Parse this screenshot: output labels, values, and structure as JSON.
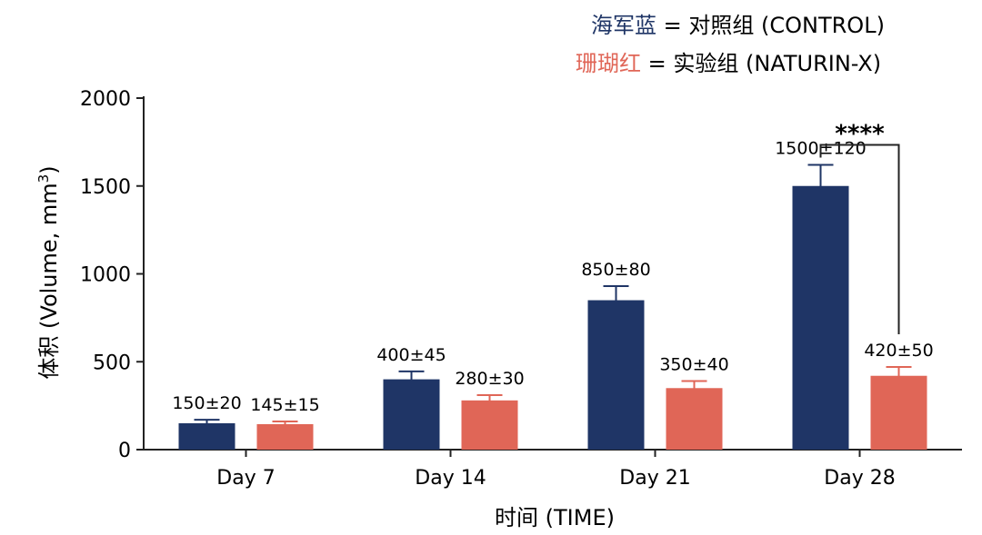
{
  "chart_data": {
    "type": "bar",
    "xlabel": "时间 (TIME)",
    "ylabel": "体积 (Volume, mm³)",
    "ylabel_main": "体积 (Volume, mm",
    "ylabel_sup": "3",
    "ylabel_close": ")",
    "ylim": [
      0,
      2000
    ],
    "yticks": [
      0,
      500,
      1000,
      1500,
      2000
    ],
    "categories": [
      "Day 7",
      "Day 14",
      "Day 21",
      "Day 28"
    ],
    "series": [
      {
        "name": "对照组 (CONTROL)",
        "legend_color_word": "海军蓝",
        "color": "#1f3566",
        "values": [
          150,
          400,
          850,
          1500
        ],
        "errors": [
          20,
          45,
          80,
          120
        ],
        "labels": [
          "150±20",
          "400±45",
          "850±80",
          "1500±120"
        ]
      },
      {
        "name": "实验组 (NATURIN-X)",
        "legend_color_word": "珊瑚红",
        "color": "#e06657",
        "values": [
          145,
          280,
          350,
          420
        ],
        "errors": [
          15,
          30,
          40,
          50
        ],
        "labels": [
          "145±15",
          "280±30",
          "350±40",
          "420±50"
        ]
      }
    ],
    "significance": {
      "category": "Day 28",
      "label": "****"
    },
    "grid": false,
    "legend_position": "top-right"
  }
}
